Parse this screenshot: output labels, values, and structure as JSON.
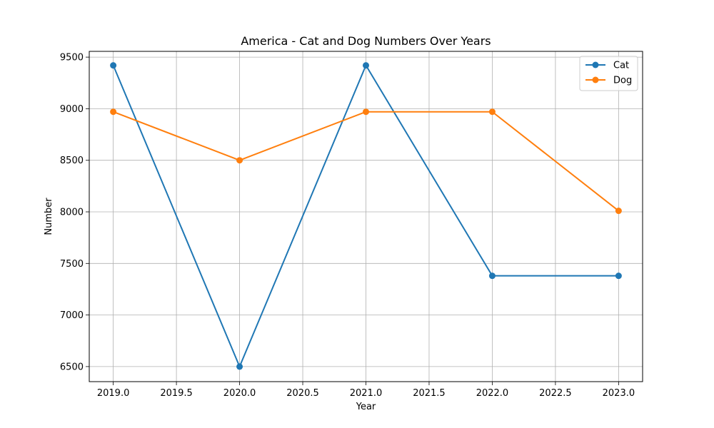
{
  "chart_data": {
    "type": "line",
    "title": "America - Cat and Dog Numbers Over Years",
    "xlabel": "Year",
    "ylabel": "Number",
    "x": [
      2019,
      2020,
      2021,
      2022,
      2023
    ],
    "x_ticks": [
      2019.0,
      2019.5,
      2020.0,
      2020.5,
      2021.0,
      2021.5,
      2022.0,
      2022.5,
      2023.0
    ],
    "x_tick_labels": [
      "2019.0",
      "2019.5",
      "2020.0",
      "2020.5",
      "2021.0",
      "2021.5",
      "2022.0",
      "2022.5",
      "2023.0"
    ],
    "y_ticks": [
      6500,
      7000,
      7500,
      8000,
      8500,
      9000,
      9500
    ],
    "y_tick_labels": [
      "6500",
      "7000",
      "7500",
      "8000",
      "8500",
      "9000",
      "9500"
    ],
    "xlim": [
      2018.81,
      2023.19
    ],
    "ylim": [
      6354,
      9556
    ],
    "grid": true,
    "legend_position": "top-right",
    "series": [
      {
        "name": "Cat",
        "color": "#1f77b4",
        "marker": "circle",
        "values": [
          9420,
          6500,
          9420,
          7380,
          7380
        ]
      },
      {
        "name": "Dog",
        "color": "#ff7f0e",
        "marker": "circle",
        "values": [
          8970,
          8500,
          8970,
          8970,
          8010
        ]
      }
    ]
  }
}
